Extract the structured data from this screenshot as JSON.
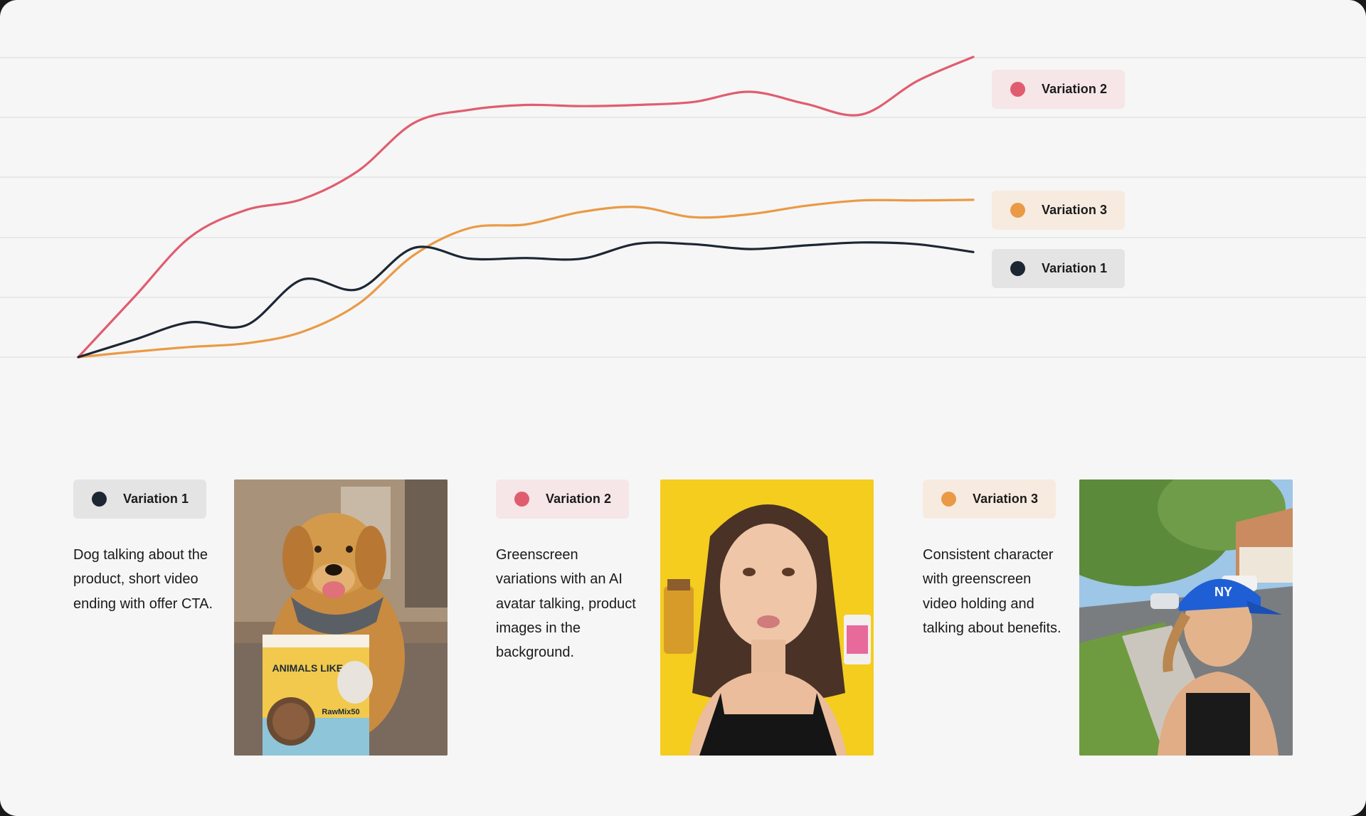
{
  "chart_data": {
    "type": "line",
    "title": "",
    "xlabel": "",
    "ylabel": "",
    "grid": true,
    "ylim": [
      0,
      5
    ],
    "x": [
      0,
      1,
      2,
      3,
      4,
      5,
      6,
      7,
      8,
      9,
      10,
      11,
      12,
      13,
      14,
      15,
      16
    ],
    "series": [
      {
        "name": "Variation 2",
        "color": "#e05d6f",
        "values": [
          0,
          1.0,
          2.0,
          2.45,
          2.63,
          3.1,
          3.9,
          4.12,
          4.2,
          4.18,
          4.2,
          4.25,
          4.42,
          4.22,
          4.04,
          4.6,
          5.0
        ]
      },
      {
        "name": "Variation 3",
        "color": "#ea9a45",
        "values": [
          0,
          0.09,
          0.17,
          0.23,
          0.42,
          0.88,
          1.7,
          2.15,
          2.21,
          2.42,
          2.5,
          2.33,
          2.38,
          2.52,
          2.61,
          2.61,
          2.62
        ]
      },
      {
        "name": "Variation 1",
        "color": "#1c2733",
        "values": [
          0,
          0.29,
          0.58,
          0.53,
          1.29,
          1.13,
          1.82,
          1.64,
          1.65,
          1.64,
          1.89,
          1.88,
          1.8,
          1.86,
          1.91,
          1.88,
          1.75
        ]
      }
    ]
  },
  "variations": [
    {
      "label": "Variation 1",
      "color": "#1c2733",
      "bg": "#e4e4e5",
      "description": "Dog talking about the product, short video ending with offer CTA.",
      "image": "golden-retriever-with-pet-food-bag"
    },
    {
      "label": "Variation 2",
      "color": "#e05d6f",
      "bg": "#f6e6e7",
      "description": "Greenscreen variations with an AI avatar talking, product images in the background.",
      "image": "woman-avatar-yellow-background"
    },
    {
      "label": "Variation 3",
      "color": "#ea9a45",
      "bg": "#f7ebe0",
      "description": "Consistent character with greenscreen video holding and talking about benefits.",
      "image": "woman-blue-cap-selfie-outdoors"
    }
  ],
  "product_bag": {
    "brand": "ANIMALS LIKE US",
    "product": "RawMix50"
  }
}
